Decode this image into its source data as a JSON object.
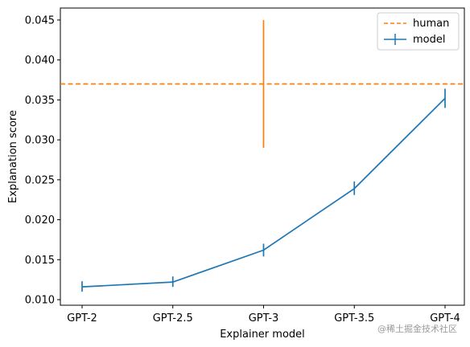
{
  "chart_data": {
    "type": "line",
    "categories": [
      "GPT-2",
      "GPT-2.5",
      "GPT-3",
      "GPT-3.5",
      "GPT-4"
    ],
    "xlabel": "Explainer model",
    "ylabel": "Explanation score",
    "ylim": [
      0.0093,
      0.0465
    ],
    "yticks": [
      "0.010",
      "0.015",
      "0.020",
      "0.025",
      "0.030",
      "0.035",
      "0.040",
      "0.045"
    ],
    "ytick_values": [
      0.01,
      0.015,
      0.02,
      0.025,
      0.03,
      0.035,
      0.04,
      0.045
    ],
    "grid": false,
    "legend_position": "top-right",
    "series": [
      {
        "name": "model",
        "color": "#1f77b4",
        "values": [
          0.0116,
          0.0122,
          0.0162,
          0.0239,
          0.0352
        ],
        "err_low": [
          0.011,
          0.0116,
          0.0154,
          0.0231,
          0.034
        ],
        "err_high": [
          0.0123,
          0.0129,
          0.017,
          0.0248,
          0.0364
        ]
      }
    ],
    "reference": {
      "name": "human",
      "color": "#ff7f0e",
      "value": 0.037,
      "x_category": "GPT-3",
      "err_low": 0.029,
      "err_high": 0.045
    }
  },
  "watermark": "@稀土掘金技术社区"
}
